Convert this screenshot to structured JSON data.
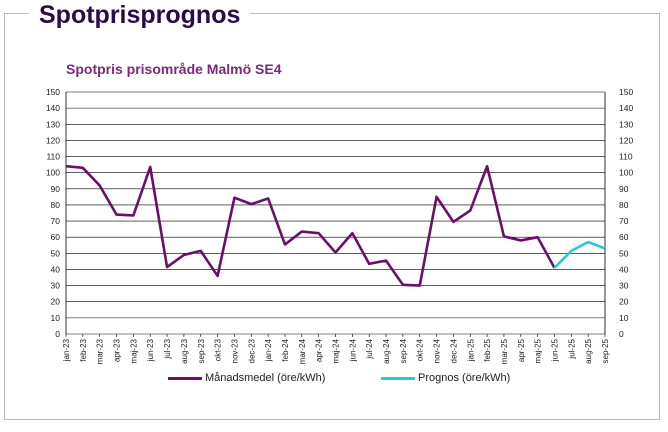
{
  "heading": "Spotprisprognos",
  "colors": {
    "monthly": "#6b0f6b",
    "forecast": "#29c6e0",
    "heading": "#2b0a4a",
    "chart_title": "#7a2a7a"
  },
  "chart_data": {
    "type": "line",
    "title": "Spotpris prisområde Malmö SE4",
    "categories": [
      "jan-23",
      "feb-23",
      "mar-23",
      "apr-23",
      "maj-23",
      "jun-23",
      "jul-23",
      "aug-23",
      "sep-23",
      "okt-23",
      "nov-23",
      "dec-23",
      "jan-24",
      "feb-24",
      "mar-24",
      "apr-24",
      "maj-24",
      "jun-24",
      "jul-24",
      "aug-24",
      "sep-24",
      "okt-24",
      "nov-24",
      "dec-24",
      "jan-25",
      "feb-25",
      "mar-25",
      "apr-25",
      "maj-25",
      "jun-25",
      "jul-25",
      "aug-25",
      "sep-25"
    ],
    "series": [
      {
        "name": "Månadsmedel (öre/kWh)",
        "values": [
          104,
          103,
          92,
          74,
          73.5,
          103.5,
          41.5,
          49,
          51.5,
          36,
          84.5,
          80.5,
          84,
          55.5,
          63.5,
          62.5,
          50.5,
          62.5,
          43.5,
          45.5,
          30.5,
          30,
          85,
          69.5,
          76.5,
          104,
          60.5,
          58,
          60,
          41,
          null,
          null,
          null
        ]
      },
      {
        "name": "Prognos (öre/kWh)",
        "values": [
          null,
          null,
          null,
          null,
          null,
          null,
          null,
          null,
          null,
          null,
          null,
          null,
          null,
          null,
          null,
          null,
          null,
          null,
          null,
          null,
          null,
          null,
          null,
          null,
          null,
          null,
          null,
          null,
          null,
          41,
          51.5,
          57,
          53
        ]
      }
    ],
    "ylim": [
      0,
      150
    ],
    "yticks": [
      0,
      10,
      20,
      30,
      40,
      50,
      60,
      70,
      80,
      90,
      100,
      110,
      120,
      130,
      140,
      150
    ],
    "secondary_axis": true,
    "grid": true,
    "legend": "bottom"
  }
}
